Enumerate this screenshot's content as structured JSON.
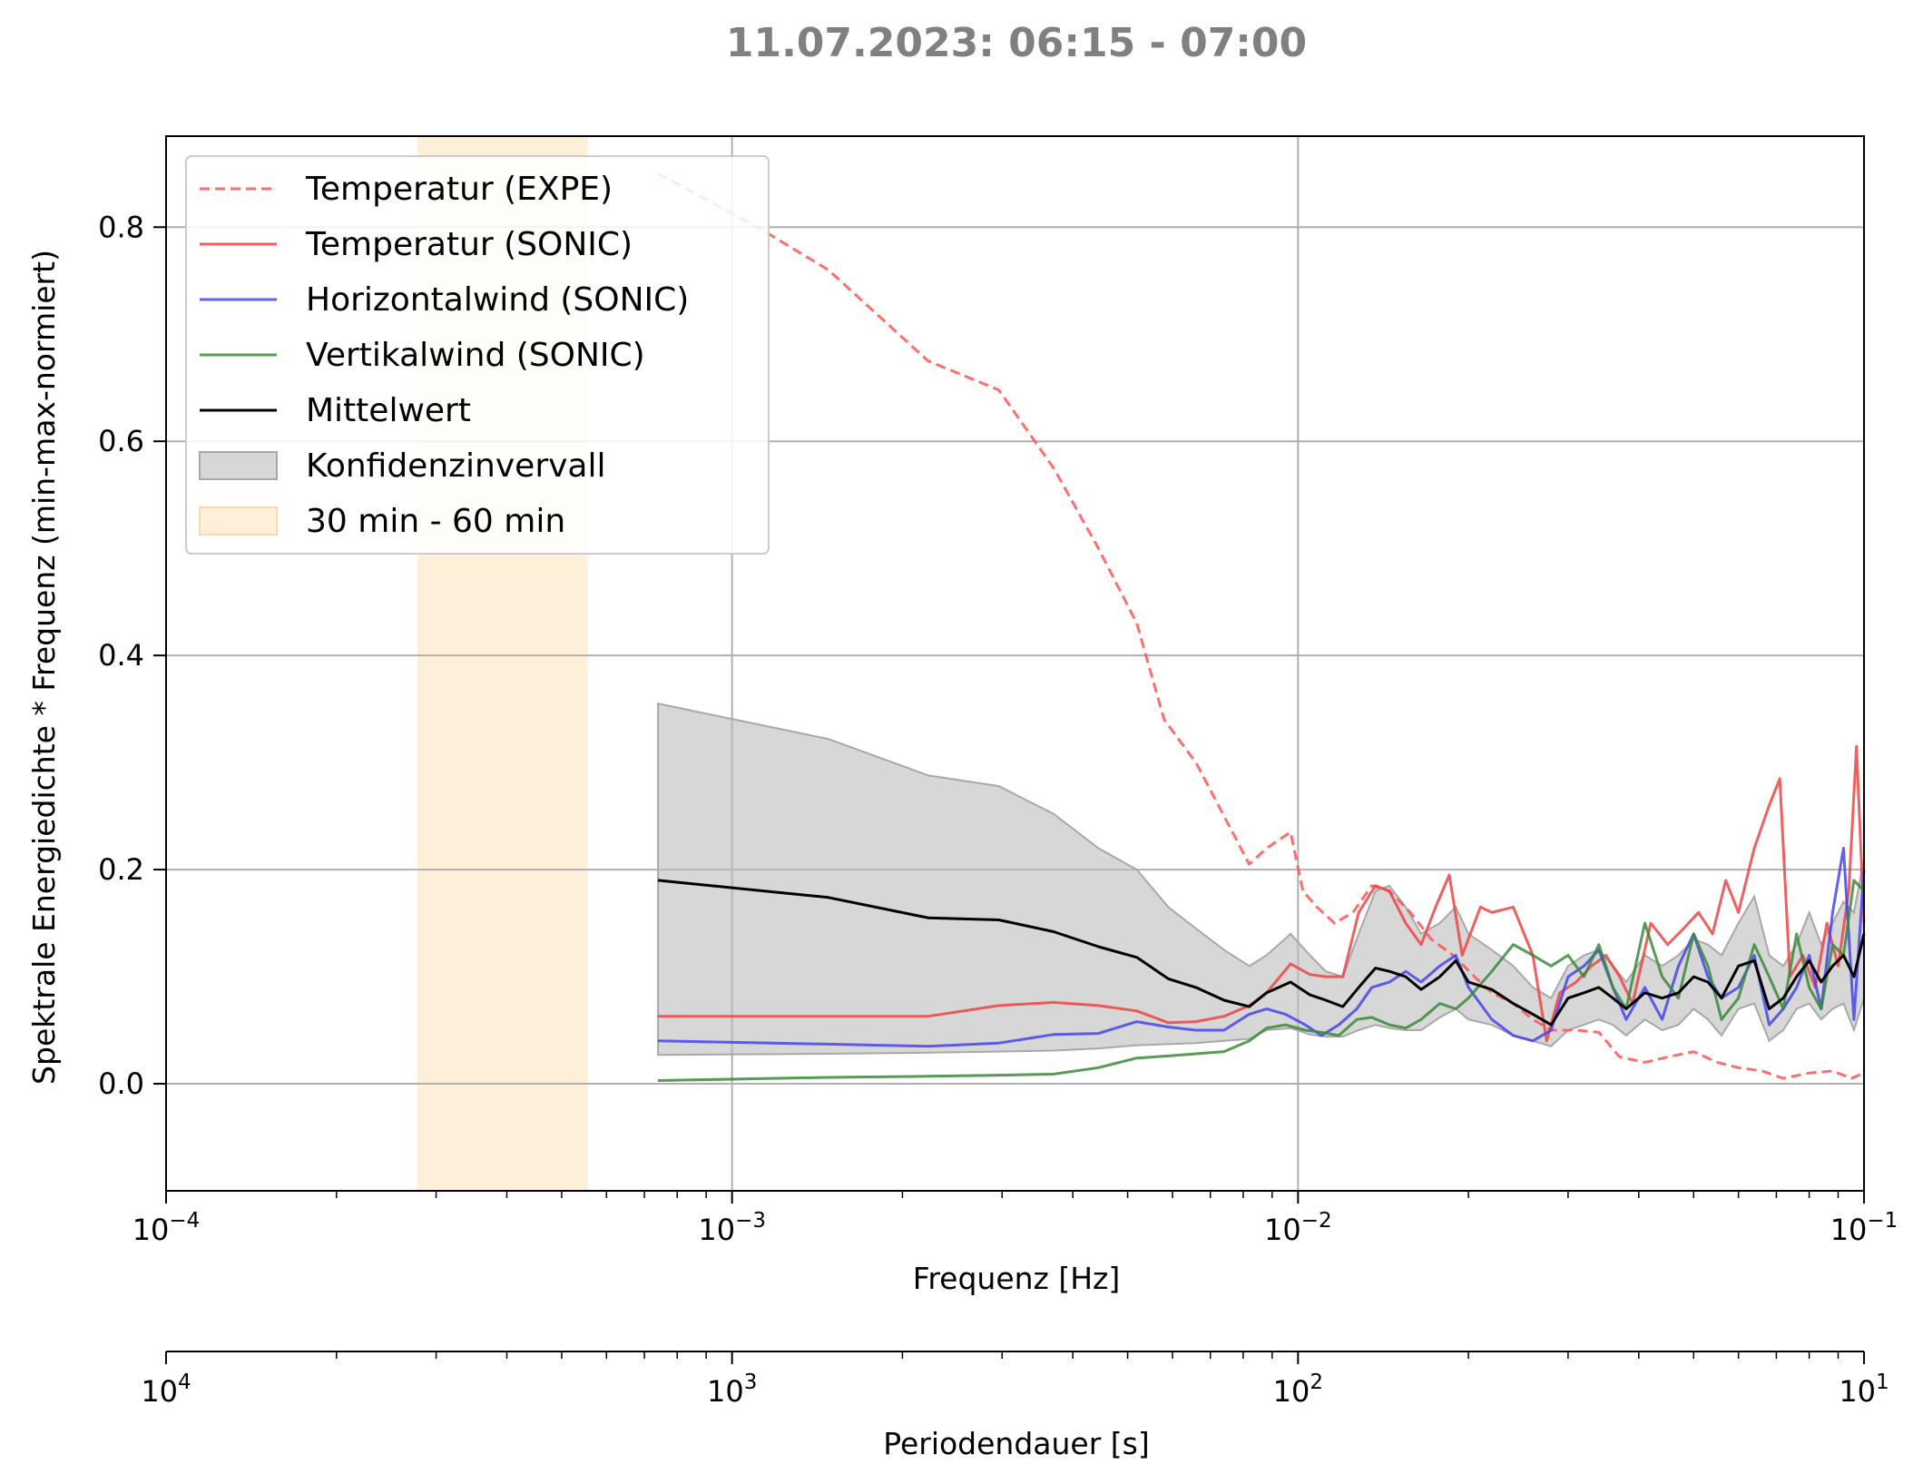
{
  "chart_data": {
    "type": "line",
    "title": "11.07.2023:  06:15 -  07:00",
    "xlabel": "Frequenz [Hz]",
    "ylabel": "Spektrale Energiedichte * Frequenz (min-max-normiert)",
    "secondary_xlabel": "Periodendauer [s]",
    "xscale": "log",
    "xlim": [
      0.0001,
      0.1
    ],
    "ylim": [
      -0.1,
      0.885
    ],
    "yticks": [
      "0.0",
      "0.2",
      "0.4",
      "0.6",
      "0.8"
    ],
    "xticks": [
      {
        "base": "10",
        "exp": "−4"
      },
      {
        "base": "10",
        "exp": "−3"
      },
      {
        "base": "10",
        "exp": "−2"
      },
      {
        "base": "10",
        "exp": "−1"
      }
    ],
    "secondary_xticks": [
      {
        "base": "10",
        "exp": "4"
      },
      {
        "base": "10",
        "exp": "3"
      },
      {
        "base": "10",
        "exp": "2"
      },
      {
        "base": "10",
        "exp": "1"
      }
    ],
    "grid": true,
    "legend_position": "top-left",
    "legend": [
      "Temperatur (EXPE)",
      "Temperatur (SONIC)",
      "Horizontalwind (SONIC)",
      "Vertikalwind (SONIC)",
      "Mittelwert",
      "Konfidenzinvervall",
      "30 min - 60 min"
    ],
    "colors": {
      "temp_expe": "#ff5555",
      "temp_sonic": "#ee4444",
      "horizontal": "#4444ee",
      "vertical": "#3a8a3a",
      "mean": "#000000",
      "band": "#bdbdbd",
      "span": "#fde9c8",
      "title": "#808080"
    },
    "period_span": {
      "x0": 0.000278,
      "x1": 0.000556
    },
    "series": [
      {
        "name": "Temperatur (EXPE)",
        "style": "dashed",
        "x": [
          0.00074,
          0.00111,
          0.00148,
          0.00222,
          0.00296,
          0.0037,
          0.00444,
          0.00519,
          0.0058,
          0.0066,
          0.0074,
          0.0082,
          0.0088,
          0.0097,
          0.0102,
          0.0108,
          0.0116,
          0.0125,
          0.0135,
          0.0145,
          0.0158,
          0.0172,
          0.0188,
          0.0205,
          0.022,
          0.024,
          0.026,
          0.028,
          0.031,
          0.034,
          0.037,
          0.041,
          0.045,
          0.05,
          0.055,
          0.06,
          0.066,
          0.072,
          0.08,
          0.088,
          0.095,
          0.1
        ],
        "y": [
          0.85,
          0.8,
          0.76,
          0.675,
          0.648,
          0.575,
          0.5,
          0.43,
          0.34,
          0.3,
          0.25,
          0.205,
          0.22,
          0.235,
          0.18,
          0.165,
          0.15,
          0.16,
          0.185,
          0.18,
          0.16,
          0.135,
          0.12,
          0.1,
          0.085,
          0.075,
          0.06,
          0.05,
          0.05,
          0.048,
          0.025,
          0.02,
          0.025,
          0.03,
          0.02,
          0.015,
          0.012,
          0.005,
          0.01,
          0.012,
          0.005,
          0.01
        ]
      },
      {
        "name": "Temperatur (SONIC)",
        "style": "solid",
        "x": [
          0.00074,
          0.00148,
          0.00222,
          0.00296,
          0.0037,
          0.00444,
          0.00519,
          0.0059,
          0.0066,
          0.0074,
          0.0082,
          0.0088,
          0.0097,
          0.0105,
          0.0112,
          0.012,
          0.0128,
          0.0137,
          0.0145,
          0.0155,
          0.0165,
          0.0175,
          0.0185,
          0.0195,
          0.021,
          0.022,
          0.024,
          0.026,
          0.0275,
          0.029,
          0.031,
          0.033,
          0.035,
          0.037,
          0.039,
          0.042,
          0.045,
          0.048,
          0.051,
          0.054,
          0.057,
          0.06,
          0.064,
          0.068,
          0.071,
          0.074,
          0.078,
          0.082,
          0.086,
          0.09,
          0.094,
          0.097,
          0.1
        ],
        "y": [
          0.063,
          0.063,
          0.063,
          0.073,
          0.076,
          0.073,
          0.068,
          0.057,
          0.058,
          0.063,
          0.073,
          0.085,
          0.112,
          0.102,
          0.1,
          0.1,
          0.16,
          0.185,
          0.18,
          0.15,
          0.13,
          0.165,
          0.195,
          0.12,
          0.165,
          0.16,
          0.165,
          0.12,
          0.04,
          0.085,
          0.095,
          0.11,
          0.12,
          0.1,
          0.075,
          0.15,
          0.13,
          0.145,
          0.16,
          0.14,
          0.19,
          0.16,
          0.22,
          0.26,
          0.285,
          0.1,
          0.12,
          0.09,
          0.15,
          0.11,
          0.18,
          0.315,
          0.15
        ]
      },
      {
        "name": "Horizontalwind (SONIC)",
        "style": "solid",
        "x": [
          0.00074,
          0.00148,
          0.00222,
          0.00296,
          0.0037,
          0.00444,
          0.00519,
          0.0059,
          0.0066,
          0.0074,
          0.0082,
          0.0088,
          0.0095,
          0.0103,
          0.011,
          0.0118,
          0.0127,
          0.0135,
          0.0145,
          0.0155,
          0.0165,
          0.0178,
          0.019,
          0.02,
          0.022,
          0.024,
          0.026,
          0.028,
          0.03,
          0.032,
          0.034,
          0.036,
          0.038,
          0.041,
          0.044,
          0.047,
          0.05,
          0.053,
          0.056,
          0.06,
          0.064,
          0.068,
          0.072,
          0.076,
          0.08,
          0.084,
          0.088,
          0.092,
          0.096,
          0.1
        ],
        "y": [
          0.04,
          0.037,
          0.035,
          0.038,
          0.046,
          0.047,
          0.058,
          0.053,
          0.05,
          0.05,
          0.065,
          0.07,
          0.065,
          0.055,
          0.045,
          0.055,
          0.07,
          0.09,
          0.095,
          0.105,
          0.095,
          0.11,
          0.12,
          0.09,
          0.06,
          0.045,
          0.04,
          0.05,
          0.1,
          0.11,
          0.125,
          0.09,
          0.06,
          0.09,
          0.06,
          0.11,
          0.14,
          0.1,
          0.08,
          0.09,
          0.12,
          0.055,
          0.07,
          0.09,
          0.12,
          0.07,
          0.16,
          0.22,
          0.06,
          0.2
        ]
      },
      {
        "name": "Vertikalwind (SONIC)",
        "style": "solid",
        "x": [
          0.00074,
          0.00148,
          0.00222,
          0.00296,
          0.0037,
          0.00444,
          0.00519,
          0.0059,
          0.0066,
          0.0074,
          0.0082,
          0.0088,
          0.0095,
          0.0103,
          0.011,
          0.0118,
          0.0127,
          0.0135,
          0.0145,
          0.0155,
          0.0165,
          0.0178,
          0.019,
          0.02,
          0.022,
          0.024,
          0.026,
          0.028,
          0.03,
          0.032,
          0.034,
          0.036,
          0.038,
          0.041,
          0.044,
          0.047,
          0.05,
          0.053,
          0.056,
          0.06,
          0.064,
          0.068,
          0.072,
          0.076,
          0.08,
          0.084,
          0.088,
          0.092,
          0.096,
          0.1
        ],
        "y": [
          0.003,
          0.006,
          0.007,
          0.008,
          0.009,
          0.015,
          0.024,
          0.026,
          0.028,
          0.03,
          0.04,
          0.052,
          0.055,
          0.05,
          0.048,
          0.045,
          0.06,
          0.062,
          0.055,
          0.052,
          0.06,
          0.075,
          0.07,
          0.08,
          0.105,
          0.13,
          0.12,
          0.11,
          0.12,
          0.1,
          0.13,
          0.09,
          0.07,
          0.15,
          0.1,
          0.08,
          0.14,
          0.11,
          0.06,
          0.08,
          0.13,
          0.1,
          0.07,
          0.14,
          0.09,
          0.07,
          0.13,
          0.12,
          0.19,
          0.18
        ]
      },
      {
        "name": "Mittelwert",
        "style": "solid",
        "x": [
          0.00074,
          0.00148,
          0.00222,
          0.00296,
          0.0037,
          0.00444,
          0.00519,
          0.0059,
          0.0066,
          0.0074,
          0.0082,
          0.0088,
          0.0097,
          0.0105,
          0.0112,
          0.012,
          0.0128,
          0.0137,
          0.0145,
          0.0155,
          0.0165,
          0.0178,
          0.019,
          0.02,
          0.022,
          0.024,
          0.026,
          0.028,
          0.03,
          0.032,
          0.034,
          0.036,
          0.038,
          0.041,
          0.044,
          0.047,
          0.05,
          0.053,
          0.056,
          0.06,
          0.064,
          0.068,
          0.072,
          0.076,
          0.08,
          0.084,
          0.088,
          0.092,
          0.096,
          0.1
        ],
        "y": [
          0.19,
          0.174,
          0.155,
          0.153,
          0.142,
          0.128,
          0.118,
          0.098,
          0.09,
          0.078,
          0.072,
          0.085,
          0.095,
          0.083,
          0.078,
          0.072,
          0.09,
          0.108,
          0.105,
          0.1,
          0.088,
          0.1,
          0.115,
          0.095,
          0.088,
          0.075,
          0.065,
          0.055,
          0.08,
          0.085,
          0.09,
          0.08,
          0.07,
          0.085,
          0.08,
          0.085,
          0.1,
          0.095,
          0.08,
          0.11,
          0.115,
          0.07,
          0.08,
          0.1,
          0.115,
          0.095,
          0.11,
          0.12,
          0.1,
          0.14
        ]
      }
    ],
    "confidence_band": {
      "x": [
        0.00074,
        0.00148,
        0.00222,
        0.00296,
        0.0037,
        0.00444,
        0.00519,
        0.0059,
        0.0066,
        0.0074,
        0.0082,
        0.0088,
        0.0097,
        0.0105,
        0.0112,
        0.012,
        0.0128,
        0.0137,
        0.0145,
        0.0155,
        0.0165,
        0.0178,
        0.019,
        0.02,
        0.022,
        0.024,
        0.026,
        0.028,
        0.03,
        0.032,
        0.034,
        0.036,
        0.038,
        0.041,
        0.044,
        0.047,
        0.05,
        0.053,
        0.056,
        0.06,
        0.064,
        0.068,
        0.072,
        0.076,
        0.08,
        0.084,
        0.088,
        0.092,
        0.096,
        0.1
      ],
      "upper": [
        0.355,
        0.322,
        0.288,
        0.278,
        0.252,
        0.22,
        0.2,
        0.165,
        0.145,
        0.125,
        0.11,
        0.12,
        0.14,
        0.12,
        0.105,
        0.1,
        0.14,
        0.18,
        0.185,
        0.165,
        0.14,
        0.15,
        0.165,
        0.14,
        0.125,
        0.11,
        0.09,
        0.08,
        0.11,
        0.12,
        0.125,
        0.11,
        0.095,
        0.12,
        0.11,
        0.12,
        0.135,
        0.13,
        0.12,
        0.15,
        0.175,
        0.12,
        0.11,
        0.13,
        0.16,
        0.13,
        0.15,
        0.17,
        0.16,
        0.21
      ]
    },
    "confidence_lower": {
      "y": [
        0.027,
        0.028,
        0.029,
        0.03,
        0.031,
        0.033,
        0.036,
        0.037,
        0.038,
        0.04,
        0.042,
        0.05,
        0.052,
        0.046,
        0.044,
        0.044,
        0.05,
        0.055,
        0.052,
        0.05,
        0.05,
        0.062,
        0.07,
        0.06,
        0.055,
        0.045,
        0.04,
        0.035,
        0.05,
        0.055,
        0.06,
        0.055,
        0.045,
        0.06,
        0.05,
        0.055,
        0.07,
        0.06,
        0.045,
        0.07,
        0.075,
        0.04,
        0.05,
        0.07,
        0.075,
        0.06,
        0.07,
        0.075,
        0.05,
        0.08
      ]
    }
  }
}
